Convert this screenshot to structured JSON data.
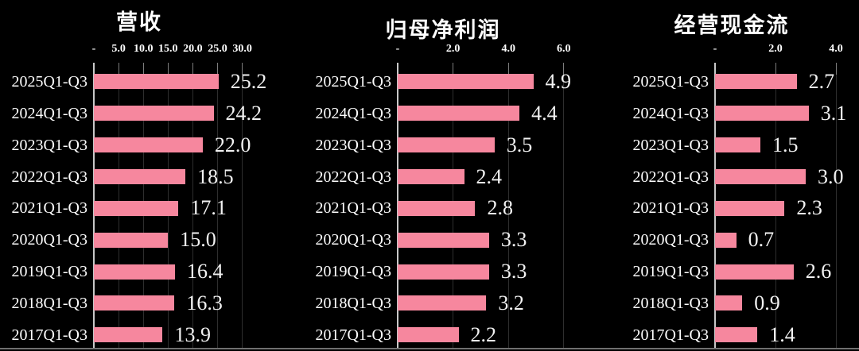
{
  "colors": {
    "background": "#000000",
    "bar": "#F6879E",
    "text": "#FFFFFF",
    "gridline": "#2E2E2E",
    "axis": "#C8C8C8",
    "baseline": "#6F6F6F"
  },
  "chart_data": [
    {
      "type": "bar",
      "orientation": "horizontal",
      "title": "营收",
      "categories": [
        "2025Q1-Q3",
        "2024Q1-Q3",
        "2023Q1-Q3",
        "2022Q1-Q3",
        "2021Q1-Q3",
        "2020Q1-Q3",
        "2019Q1-Q3",
        "2018Q1-Q3",
        "2017Q1-Q3"
      ],
      "values": [
        25.2,
        24.2,
        22.0,
        18.5,
        17.1,
        15.0,
        16.4,
        16.3,
        13.9
      ],
      "value_labels": [
        "25.2",
        "24.2",
        "22.0",
        "18.5",
        "17.1",
        "15.0",
        "16.4",
        "16.3",
        "13.9"
      ],
      "tick_labels": [
        "-",
        "5.0",
        "10.0",
        "15.0",
        "20.0",
        "25.0",
        "30.0"
      ],
      "tick_values": [
        0,
        5,
        10,
        15,
        20,
        25,
        30
      ],
      "xlim": [
        0,
        35
      ],
      "grid": true,
      "legend": false
    },
    {
      "type": "bar",
      "orientation": "horizontal",
      "title": "归母净利润",
      "categories": [
        "2025Q1-Q3",
        "2024Q1-Q3",
        "2023Q1-Q3",
        "2022Q1-Q3",
        "2021Q1-Q3",
        "2020Q1-Q3",
        "2019Q1-Q3",
        "2018Q1-Q3",
        "2017Q1-Q3"
      ],
      "values": [
        4.9,
        4.4,
        3.5,
        2.4,
        2.8,
        3.3,
        3.3,
        3.2,
        2.2
      ],
      "value_labels": [
        "4.9",
        "4.4",
        "3.5",
        "2.4",
        "2.8",
        "3.3",
        "3.3",
        "3.2",
        "2.2"
      ],
      "tick_labels": [
        "-",
        "2.0",
        "4.0",
        "6.0"
      ],
      "tick_values": [
        0,
        2,
        4,
        6
      ],
      "xlim": [
        0,
        6.8
      ],
      "grid": true,
      "legend": false
    },
    {
      "type": "bar",
      "orientation": "horizontal",
      "title": "经营现金流",
      "categories": [
        "2025Q1-Q3",
        "2024Q1-Q3",
        "2023Q1-Q3",
        "2022Q1-Q3",
        "2021Q1-Q3",
        "2020Q1-Q3",
        "2019Q1-Q3",
        "2018Q1-Q3",
        "2017Q1-Q3"
      ],
      "values": [
        2.7,
        3.1,
        1.5,
        3.0,
        2.3,
        0.7,
        2.6,
        0.9,
        1.4
      ],
      "value_labels": [
        "2.7",
        "3.1",
        "1.5",
        "3.0",
        "2.3",
        "0.7",
        "2.6",
        "0.9",
        "1.4"
      ],
      "tick_labels": [
        "-",
        "2.0",
        "4.0"
      ],
      "tick_values": [
        0,
        2,
        4
      ],
      "xlim": [
        0,
        4.7
      ],
      "grid": true,
      "legend": false
    }
  ]
}
